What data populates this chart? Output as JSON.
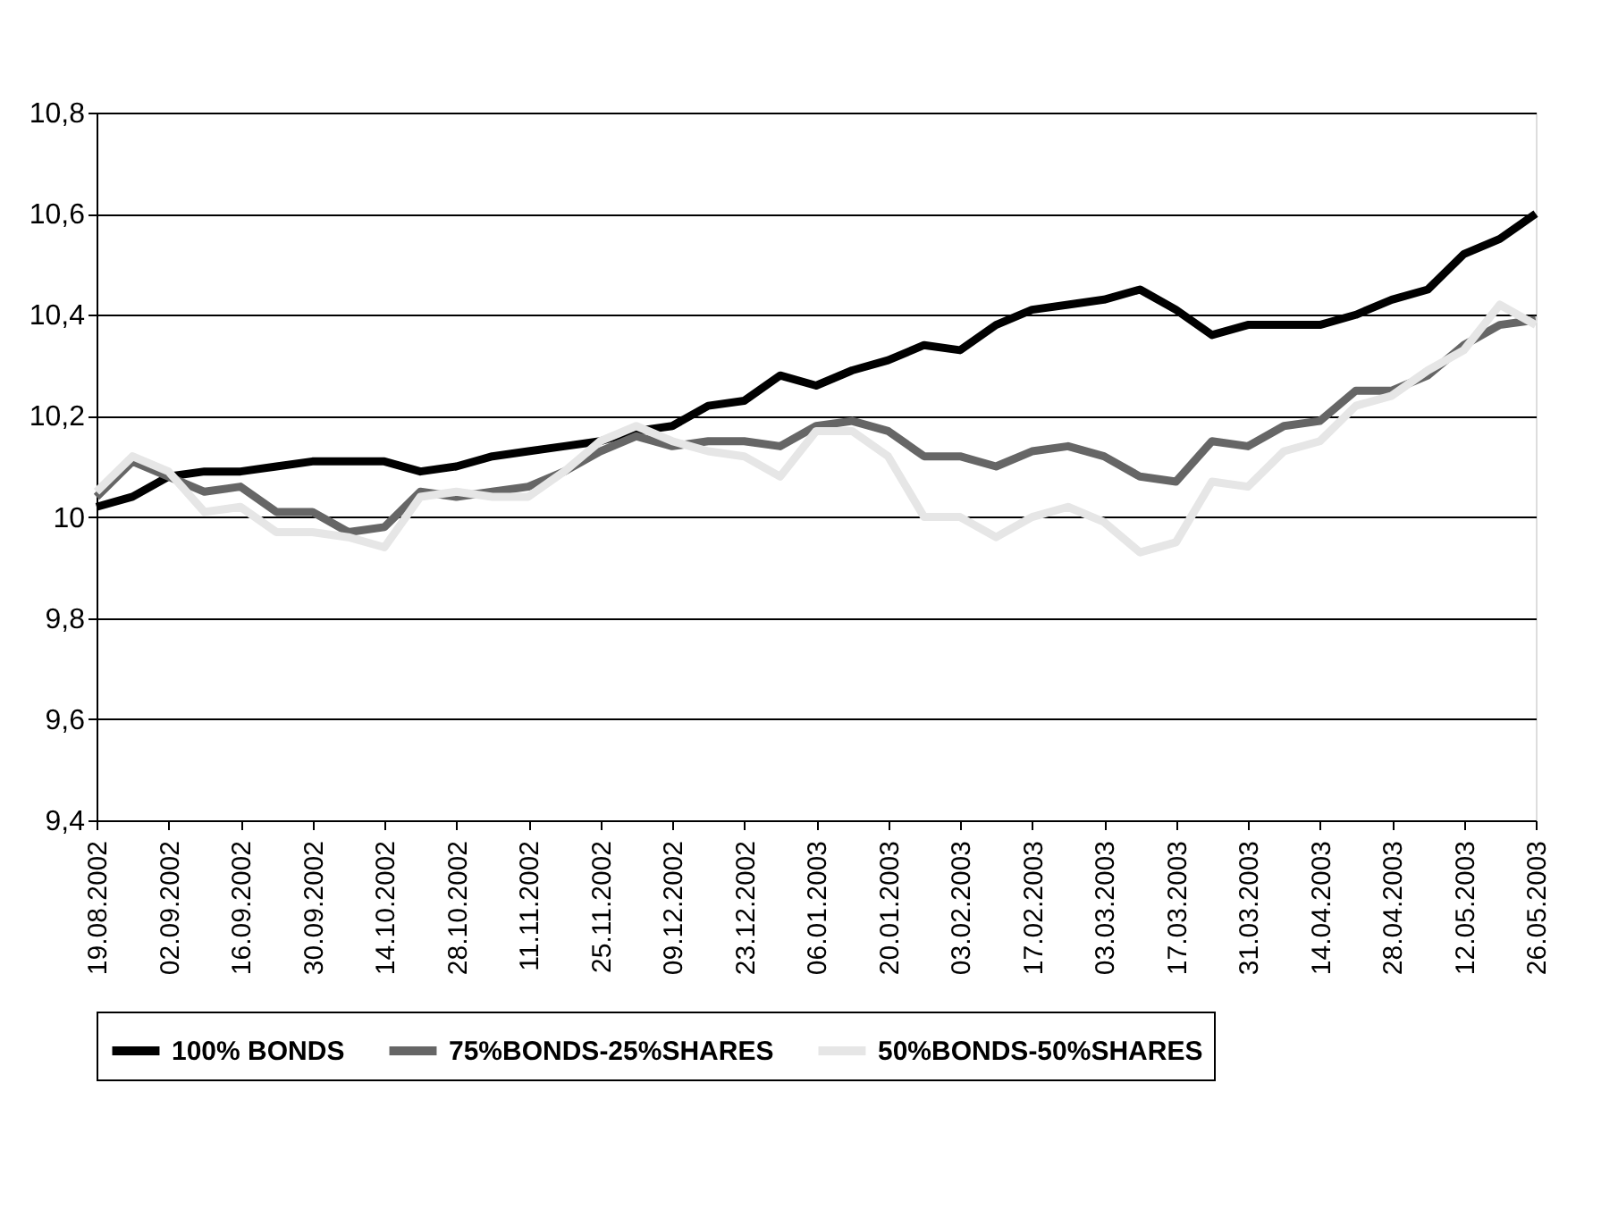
{
  "chart_data": {
    "type": "line",
    "categories": [
      "19.08.2002",
      null,
      "02.09.2002",
      null,
      "16.09.2002",
      null,
      "30.09.2002",
      null,
      "14.10.2002",
      null,
      "28.10.2002",
      null,
      "11.11.2002",
      null,
      "25.11.2002",
      null,
      "09.12.2002",
      null,
      "23.12.2002",
      null,
      "06.01.2003",
      null,
      "20.01.2003",
      null,
      "03.02.2003",
      null,
      "17.02.2003",
      null,
      "03.03.2003",
      null,
      "17.03.2003",
      null,
      "31.03.2003",
      null,
      "14.04.2003",
      null,
      "28.04.2003",
      null,
      "12.05.2003",
      null,
      "26.05.2003"
    ],
    "series": [
      {
        "name": "100% BONDS",
        "color": "#000000",
        "values": [
          10.02,
          10.04,
          10.08,
          10.09,
          10.09,
          10.1,
          10.11,
          10.11,
          10.11,
          10.09,
          10.1,
          10.12,
          10.13,
          10.14,
          10.15,
          10.17,
          10.18,
          10.22,
          10.23,
          10.28,
          10.26,
          10.29,
          10.31,
          10.34,
          10.33,
          10.38,
          10.41,
          10.42,
          10.43,
          10.45,
          10.41,
          10.36,
          10.38,
          10.38,
          10.38,
          10.4,
          10.43,
          10.45,
          10.52,
          10.55,
          10.6
        ]
      },
      {
        "name": "75%BONDS-25%SHARES",
        "color": "#666666",
        "values": [
          10.04,
          10.11,
          10.08,
          10.05,
          10.06,
          10.01,
          10.01,
          9.97,
          9.98,
          10.05,
          10.04,
          10.05,
          10.06,
          10.09,
          10.13,
          10.16,
          10.14,
          10.15,
          10.15,
          10.14,
          10.18,
          10.19,
          10.17,
          10.12,
          10.12,
          10.1,
          10.13,
          10.14,
          10.12,
          10.08,
          10.07,
          10.15,
          10.14,
          10.18,
          10.19,
          10.25,
          10.25,
          10.28,
          10.34,
          10.38,
          10.39
        ]
      },
      {
        "name": "50%BONDS-50%SHARES",
        "color": "#e6e6e6",
        "values": [
          10.05,
          10.12,
          10.09,
          10.01,
          10.02,
          9.97,
          9.97,
          9.96,
          9.94,
          10.04,
          10.05,
          10.04,
          10.04,
          10.09,
          10.15,
          10.18,
          10.15,
          10.13,
          10.12,
          10.08,
          10.17,
          10.17,
          10.12,
          10.0,
          10.0,
          9.96,
          10.0,
          10.02,
          9.99,
          9.93,
          9.95,
          10.07,
          10.06,
          10.13,
          10.15,
          10.22,
          10.24,
          10.29,
          10.33,
          10.42,
          10.38
        ]
      }
    ],
    "ylim": [
      9.4,
      10.8
    ],
    "yticks": [
      {
        "value": 9.4,
        "label": "9,4"
      },
      {
        "value": 9.6,
        "label": "9,6"
      },
      {
        "value": 9.8,
        "label": "9,8"
      },
      10,
      {
        "value": 10.2,
        "label": "10,2"
      },
      {
        "value": 10.4,
        "label": "10,4"
      },
      {
        "value": 10.6,
        "label": "10,6"
      },
      {
        "value": 10.8,
        "label": "10,8"
      }
    ],
    "grid": "y",
    "legend": "bottom",
    "marker": "none",
    "line_style": "solid"
  }
}
